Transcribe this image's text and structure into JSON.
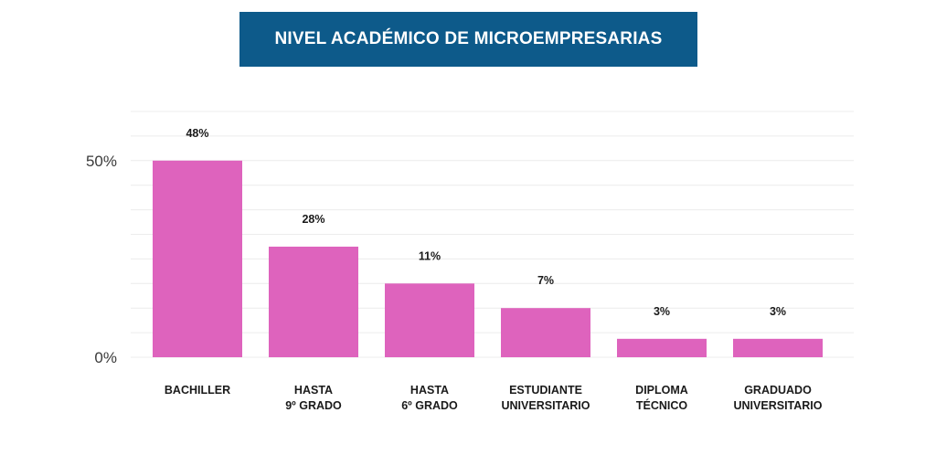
{
  "chart_data": {
    "type": "bar",
    "title": "NIVEL ACADÉMICO DE MICROEMPRESARIAS",
    "categories": [
      [
        "BACHILLER"
      ],
      [
        "HASTA",
        "9º GRADO"
      ],
      [
        "HASTA",
        "6º GRADO"
      ],
      [
        "ESTUDIANTE",
        "UNIVERSITARIO"
      ],
      [
        "DIPLOMA",
        "TÉCNICO"
      ],
      [
        "GRADUADO",
        "UNIVERSITARIO"
      ]
    ],
    "values": [
      48,
      28,
      11,
      7,
      3,
      3
    ],
    "value_labels": [
      "48%",
      "28%",
      "11%",
      "7%",
      "3%",
      "3%"
    ],
    "bar_units": [
      8,
      4.5,
      3,
      2,
      0.75,
      0.75
    ],
    "unit_scale_note": "drawn bar heights follow the visual scale of the original (not strictly proportional to labels)",
    "ylim_units": [
      0,
      10
    ],
    "yticks": [
      {
        "label": "0%",
        "unit": 0
      },
      {
        "label": "50%",
        "unit": 8
      }
    ],
    "xlabel": "",
    "ylabel": "",
    "grid": true,
    "colors": {
      "bar": "#de63bd",
      "banner": "#0d5a8a",
      "grid": "#ececec"
    }
  }
}
